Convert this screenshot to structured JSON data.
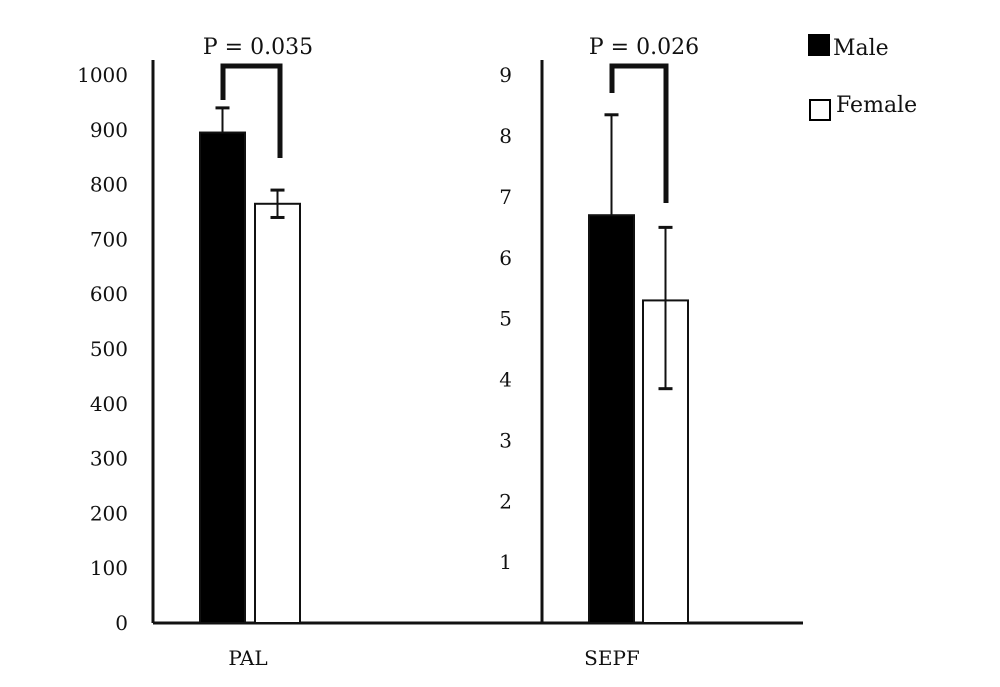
{
  "colors": {
    "male": "#000000",
    "female": "#ffffff",
    "axis": "#111111"
  },
  "legend": {
    "placement": "top-right",
    "items": [
      {
        "label": "Male",
        "swatch": "filled"
      },
      {
        "label": "Female",
        "swatch": "outline"
      }
    ]
  },
  "chart_data": [
    {
      "type": "bar",
      "title": "",
      "xlabel": "",
      "ylabel": "",
      "categories": [
        "PAL"
      ],
      "ylim": [
        0,
        1000
      ],
      "yticks": [
        "0",
        "100",
        "200",
        "300",
        "400",
        "500",
        "600",
        "700",
        "800",
        "900",
        "1000"
      ],
      "series": [
        {
          "name": "Male",
          "values": [
            895
          ],
          "error_upper": [
            940
          ],
          "error_lower": [
            895
          ]
        },
        {
          "name": "Female",
          "values": [
            765
          ],
          "error_upper": [
            790
          ],
          "error_lower": [
            740
          ]
        }
      ],
      "annotation": "P = 0.035"
    },
    {
      "type": "bar",
      "title": "",
      "xlabel": "",
      "ylabel": "",
      "categories": [
        "SEPF"
      ],
      "ylim": [
        0,
        9.25
      ],
      "yticks": [
        "1",
        "2",
        "3",
        "4",
        "5",
        "6",
        "7",
        "8",
        "9"
      ],
      "series": [
        {
          "name": "Male",
          "values": [
            6.7
          ],
          "error_upper": [
            8.35
          ],
          "error_lower": [
            6.7
          ]
        },
        {
          "name": "Female",
          "values": [
            5.3
          ],
          "error_upper": [
            6.5
          ],
          "error_lower": [
            3.85
          ]
        }
      ],
      "annotation": "P = 0.026"
    }
  ]
}
